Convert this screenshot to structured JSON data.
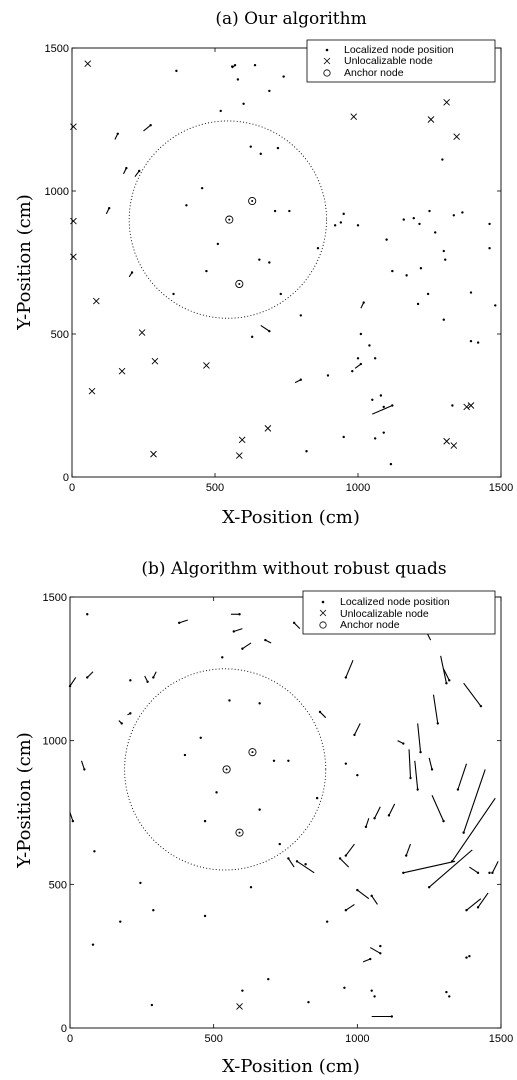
{
  "chart_data": [
    {
      "type": "scatter",
      "title": "(a) Our algorithm",
      "xlabel": "X-Position (cm)",
      "ylabel": "Y-Position (cm)",
      "xlim": [
        0,
        1500
      ],
      "ylim": [
        0,
        1500
      ],
      "xticks": [
        0,
        500,
        1000,
        1500
      ],
      "yticks": [
        0,
        500,
        1000,
        1500
      ],
      "legend_position": "top-right",
      "legend": [
        {
          "marker": "dot",
          "label": "Localized node position"
        },
        {
          "marker": "cross",
          "label": "Unlocalizable node"
        },
        {
          "marker": "circle",
          "label": "Anchor node"
        }
      ],
      "circle": {
        "center": [
          545,
          900
        ],
        "radius": 345
      },
      "anchors": [
        [
          630,
          965
        ],
        [
          550,
          900
        ],
        [
          585,
          675
        ]
      ],
      "unlocalizable": [
        [
          55,
          1445
        ],
        [
          5,
          1225
        ],
        [
          5,
          895
        ],
        [
          5,
          770
        ],
        [
          85,
          615
        ],
        [
          70,
          300
        ],
        [
          175,
          370
        ],
        [
          245,
          505
        ],
        [
          290,
          405
        ],
        [
          470,
          390
        ],
        [
          985,
          1260
        ],
        [
          1255,
          1250
        ],
        [
          1310,
          1310
        ],
        [
          1345,
          1190
        ],
        [
          1380,
          245
        ],
        [
          1395,
          250
        ],
        [
          1310,
          125
        ],
        [
          1335,
          110
        ],
        [
          285,
          80
        ],
        [
          595,
          130
        ],
        [
          585,
          75
        ],
        [
          685,
          170
        ]
      ],
      "localized": [
        [
          365,
          1420
        ],
        [
          560,
          1435
        ],
        [
          640,
          1440
        ],
        [
          520,
          1280
        ],
        [
          600,
          1305
        ],
        [
          580,
          1390
        ],
        [
          625,
          1155
        ],
        [
          660,
          1130
        ],
        [
          455,
          1010
        ],
        [
          400,
          950
        ],
        [
          710,
          930
        ],
        [
          760,
          930
        ],
        [
          655,
          760
        ],
        [
          690,
          750
        ],
        [
          510,
          815
        ],
        [
          470,
          720
        ],
        [
          355,
          640
        ],
        [
          630,
          490
        ],
        [
          730,
          640
        ],
        [
          800,
          565
        ],
        [
          860,
          800
        ],
        [
          920,
          880
        ],
        [
          950,
          920
        ],
        [
          1000,
          880
        ],
        [
          1100,
          830
        ],
        [
          1160,
          900
        ],
        [
          1195,
          905
        ],
        [
          1215,
          885
        ],
        [
          1250,
          930
        ],
        [
          1295,
          1110
        ],
        [
          1300,
          790
        ],
        [
          1305,
          760
        ],
        [
          1270,
          855
        ],
        [
          1120,
          720
        ],
        [
          1170,
          705
        ],
        [
          1210,
          605
        ],
        [
          1245,
          640
        ],
        [
          1300,
          550
        ],
        [
          1335,
          915
        ],
        [
          1365,
          925
        ],
        [
          1395,
          645
        ],
        [
          1420,
          470
        ],
        [
          1460,
          885
        ],
        [
          1460,
          800
        ],
        [
          1480,
          600
        ],
        [
          1395,
          475
        ],
        [
          1080,
          285
        ],
        [
          1050,
          270
        ],
        [
          1090,
          245
        ],
        [
          1060,
          135
        ],
        [
          1090,
          155
        ],
        [
          1115,
          45
        ],
        [
          1040,
          460
        ],
        [
          1060,
          415
        ],
        [
          1000,
          415
        ],
        [
          950,
          140
        ],
        [
          980,
          370
        ],
        [
          820,
          90
        ],
        [
          895,
          355
        ],
        [
          720,
          1150
        ],
        [
          740,
          1400
        ],
        [
          690,
          1350
        ],
        [
          940,
          890
        ],
        [
          1010,
          500
        ],
        [
          1220,
          730
        ],
        [
          1330,
          250
        ]
      ],
      "error_vectors": [
        [
          [
            250,
            1210
          ],
          [
            275,
            1230
          ]
        ],
        [
          [
            220,
            1050
          ],
          [
            235,
            1070
          ]
        ],
        [
          [
            180,
            1060
          ],
          [
            190,
            1080
          ]
        ],
        [
          [
            150,
            1180
          ],
          [
            160,
            1200
          ]
        ],
        [
          [
            120,
            920
          ],
          [
            130,
            940
          ]
        ],
        [
          [
            200,
            700
          ],
          [
            210,
            715
          ]
        ],
        [
          [
            560,
            1430
          ],
          [
            570,
            1440
          ]
        ],
        [
          [
            660,
            530
          ],
          [
            690,
            510
          ]
        ],
        [
          [
            1050,
            220
          ],
          [
            1120,
            250
          ]
        ],
        [
          [
            780,
            330
          ],
          [
            800,
            340
          ]
        ],
        [
          [
            990,
            380
          ],
          [
            1010,
            395
          ]
        ],
        [
          [
            1010,
            590
          ],
          [
            1020,
            610
          ]
        ]
      ]
    },
    {
      "type": "scatter",
      "title": "(b) Algorithm without robust quads",
      "xlabel": "X-Position (cm)",
      "ylabel": "Y-Position (cm)",
      "xlim": [
        0,
        1500
      ],
      "ylim": [
        0,
        1500
      ],
      "xticks": [
        0,
        500,
        1000,
        1500
      ],
      "yticks": [
        0,
        500,
        1000,
        1500
      ],
      "legend_position": "top-right",
      "legend": [
        {
          "marker": "dot",
          "label": "Localized node position"
        },
        {
          "marker": "cross",
          "label": "Unlocalizable node"
        },
        {
          "marker": "circle",
          "label": "Anchor node"
        }
      ],
      "circle": {
        "center": [
          540,
          900
        ],
        "radius": 350
      },
      "anchors": [
        [
          635,
          960
        ],
        [
          545,
          900
        ],
        [
          590,
          680
        ]
      ],
      "unlocalizable": [
        [
          590,
          75
        ]
      ],
      "localized": [
        [
          60,
          1440
        ],
        [
          285,
          80
        ],
        [
          175,
          370
        ],
        [
          290,
          410
        ],
        [
          470,
          390
        ],
        [
          245,
          505
        ],
        [
          80,
          290
        ],
        [
          85,
          615
        ],
        [
          210,
          1210
        ],
        [
          530,
          1290
        ],
        [
          555,
          1140
        ],
        [
          660,
          1130
        ],
        [
          455,
          1010
        ],
        [
          400,
          950
        ],
        [
          710,
          930
        ],
        [
          760,
          930
        ],
        [
          660,
          760
        ],
        [
          510,
          820
        ],
        [
          470,
          720
        ],
        [
          630,
          490
        ],
        [
          730,
          640
        ],
        [
          820,
          570
        ],
        [
          860,
          800
        ],
        [
          960,
          920
        ],
        [
          1000,
          880
        ],
        [
          1050,
          130
        ],
        [
          1060,
          110
        ],
        [
          1080,
          285
        ],
        [
          955,
          140
        ],
        [
          895,
          370
        ],
        [
          600,
          130
        ],
        [
          690,
          170
        ],
        [
          830,
          90
        ],
        [
          1310,
          125
        ],
        [
          1320,
          110
        ],
        [
          1390,
          250
        ],
        [
          1380,
          245
        ],
        [
          1460,
          540
        ]
      ],
      "error_vectors": [
        [
          [
            20,
            1220
          ],
          [
            0,
            1190
          ]
        ],
        [
          [
            260,
            1225
          ],
          [
            270,
            1205
          ]
        ],
        [
          [
            200,
            1090
          ],
          [
            210,
            1095
          ]
        ],
        [
          [
            170,
            1070
          ],
          [
            180,
            1060
          ]
        ],
        [
          [
            1255,
            1350
          ],
          [
            1240,
            1380
          ]
        ],
        [
          [
            1290,
            1295
          ],
          [
            1310,
            1200
          ]
        ],
        [
          [
            1300,
            1250
          ],
          [
            1320,
            1210
          ]
        ],
        [
          [
            1370,
            1200
          ],
          [
            1430,
            1120
          ]
        ],
        [
          [
            1265,
            1160
          ],
          [
            1280,
            1060
          ]
        ],
        [
          [
            1210,
            1060
          ],
          [
            1220,
            960
          ]
        ],
        [
          [
            1180,
            970
          ],
          [
            1185,
            870
          ]
        ],
        [
          [
            1200,
            930
          ],
          [
            1210,
            830
          ]
        ],
        [
          [
            1250,
            940
          ],
          [
            1260,
            900
          ]
        ],
        [
          [
            1260,
            810
          ],
          [
            1300,
            720
          ]
        ],
        [
          [
            1380,
            920
          ],
          [
            1350,
            830
          ]
        ],
        [
          [
            1445,
            900
          ],
          [
            1370,
            680
          ]
        ],
        [
          [
            1480,
            800
          ],
          [
            1330,
            580
          ]
        ],
        [
          [
            1400,
            620
          ],
          [
            1250,
            490
          ]
        ],
        [
          [
            1340,
            580
          ],
          [
            1160,
            540
          ]
        ],
        [
          [
            1490,
            580
          ],
          [
            1470,
            540
          ]
        ],
        [
          [
            1430,
            450
          ],
          [
            1380,
            410
          ]
        ],
        [
          [
            1455,
            470
          ],
          [
            1420,
            420
          ]
        ],
        [
          [
            1040,
            730
          ],
          [
            1030,
            700
          ]
        ],
        [
          [
            1080,
            770
          ],
          [
            1060,
            730
          ]
        ],
        [
          [
            1130,
            780
          ],
          [
            1110,
            740
          ]
        ],
        [
          [
            1185,
            640
          ],
          [
            1170,
            600
          ]
        ],
        [
          [
            850,
            540
          ],
          [
            790,
            580
          ]
        ],
        [
          [
            780,
            560
          ],
          [
            760,
            590
          ]
        ],
        [
          [
            970,
            560
          ],
          [
            940,
            590
          ]
        ],
        [
          [
            990,
            640
          ],
          [
            960,
            600
          ]
        ],
        [
          [
            1040,
            450
          ],
          [
            1000,
            480
          ]
        ],
        [
          [
            1070,
            430
          ],
          [
            1050,
            460
          ]
        ],
        [
          [
            990,
            430
          ],
          [
            960,
            410
          ]
        ],
        [
          [
            1045,
            280
          ],
          [
            1080,
            260
          ]
        ],
        [
          [
            1050,
            40
          ],
          [
            1120,
            40
          ]
        ],
        [
          [
            985,
            1280
          ],
          [
            960,
            1220
          ]
        ],
        [
          [
            1010,
            1060
          ],
          [
            990,
            1020
          ]
        ],
        [
          [
            1140,
            1000
          ],
          [
            1160,
            990
          ]
        ],
        [
          [
            410,
            1420
          ],
          [
            380,
            1410
          ]
        ],
        [
          [
            560,
            1440
          ],
          [
            590,
            1440
          ]
        ],
        [
          [
            600,
            1390
          ],
          [
            570,
            1380
          ]
        ],
        [
          [
            630,
            1340
          ],
          [
            600,
            1320
          ]
        ],
        [
          [
            700,
            1340
          ],
          [
            680,
            1350
          ]
        ],
        [
          [
            800,
            1390
          ],
          [
            780,
            1410
          ]
        ],
        [
          [
            80,
            1240
          ],
          [
            60,
            1220
          ]
        ],
        [
          [
            40,
            930
          ],
          [
            50,
            900
          ]
        ],
        [
          [
            0,
            750
          ],
          [
            10,
            720
          ]
        ],
        [
          [
            300,
            1240
          ],
          [
            290,
            1220
          ]
        ],
        [
          [
            1390,
            560
          ],
          [
            1420,
            540
          ]
        ],
        [
          [
            1020,
            230
          ],
          [
            1045,
            240
          ]
        ],
        [
          [
            890,
            1080
          ],
          [
            870,
            1100
          ]
        ]
      ]
    }
  ]
}
